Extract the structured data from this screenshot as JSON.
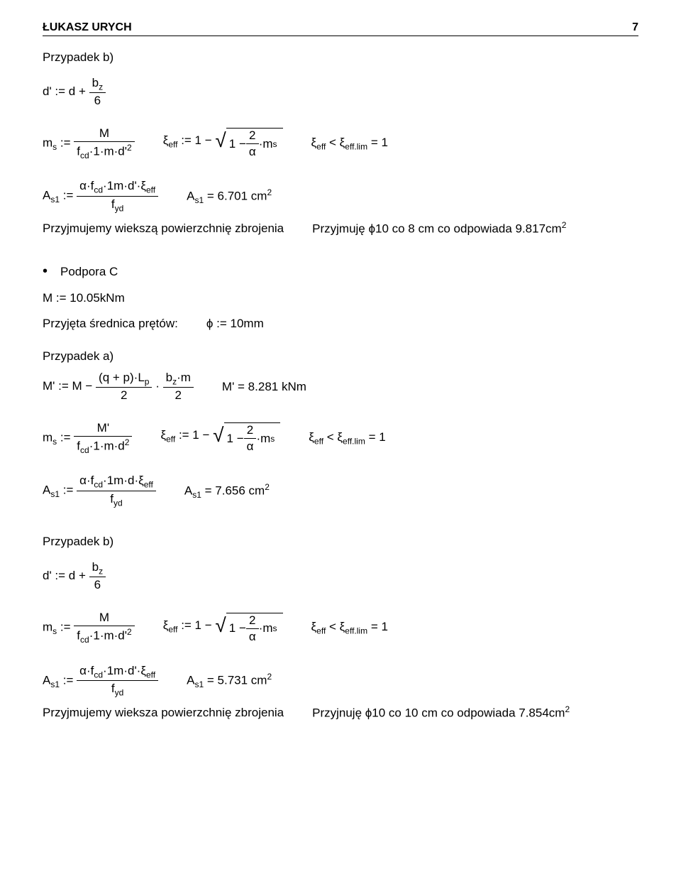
{
  "header": {
    "author": "ŁUKASZ URYCH",
    "page": "7"
  },
  "labels": {
    "case_b": "Przypadek b)",
    "case_a": "Przypadek a)",
    "support_c": "Podpora C",
    "adopt_large": "Przyjmujemy wiekszą powierzchnię zbrojenia",
    "adopt_large2": "Przyjmujemy wieksza powierzchnię zbrojenia",
    "adopted_diam": "Przyjęta średnica prętów:"
  },
  "eq": {
    "dprime": "d' := d +",
    "bz": "b",
    "bz_sub": "z",
    "six": "6",
    "ms": "m",
    "ms_sub": "s",
    "assign": " := ",
    "M": "M",
    "fcd1md2": "f",
    "fcd_sub": "cd",
    "one_m": "·1·m·d'",
    "sq2": "2",
    "one_m_d": "·1·m·d",
    "xi": "ξ",
    "eff_sub": "eff",
    "eff_assign": " := 1 − ",
    "one_minus": "1 − ",
    "two_over_alpha_num": "2",
    "alpha": "α",
    "dot_ms": "·m",
    "dot_ms_sub": "s",
    "xi_cmp": " < ξ",
    "efflim_sub": "eff.lim",
    "eq1": " = 1",
    "As1": "A",
    "s1_sub": "s1",
    "alpha_fcd": "α·f",
    "cd_sub": "cd",
    "one_m_d_xi": "·1m·d'·ξ",
    "one_m_d_xi_nop": "·1m·d·ξ",
    "fyd": "f",
    "yd_sub": "yd",
    "As1_eq": "A",
    "eq_val1": " = 6.701 cm",
    "eq_val1_sup": "2",
    "accept_phi": "Przyjmuję ϕ10 co 8 cm co odpowiada 9.817cm",
    "accept_phi_sup": "2",
    "M_assign": "M := 10.05kNm",
    "phi_assign": "ϕ := 10mm",
    "Mprime": "M' := M − ",
    "qplp": "(q + p)·L",
    "p_sub": "p",
    "dot": "·",
    "bzm": "b",
    "m": "·m",
    "two": "2",
    "Mprime_val": "M' = 8.281 kNm",
    "Mprime_sym": "M'",
    "eq_val2": " = 7.656 cm",
    "eq_val2_sup": "2",
    "eq_val3": " = 5.731 cm",
    "eq_val3_sup": "2",
    "accept_phi2": "Przyjnuję ϕ10 co 10 cm co odpowiada 7.854cm",
    "accept_phi2_sup": "2"
  }
}
